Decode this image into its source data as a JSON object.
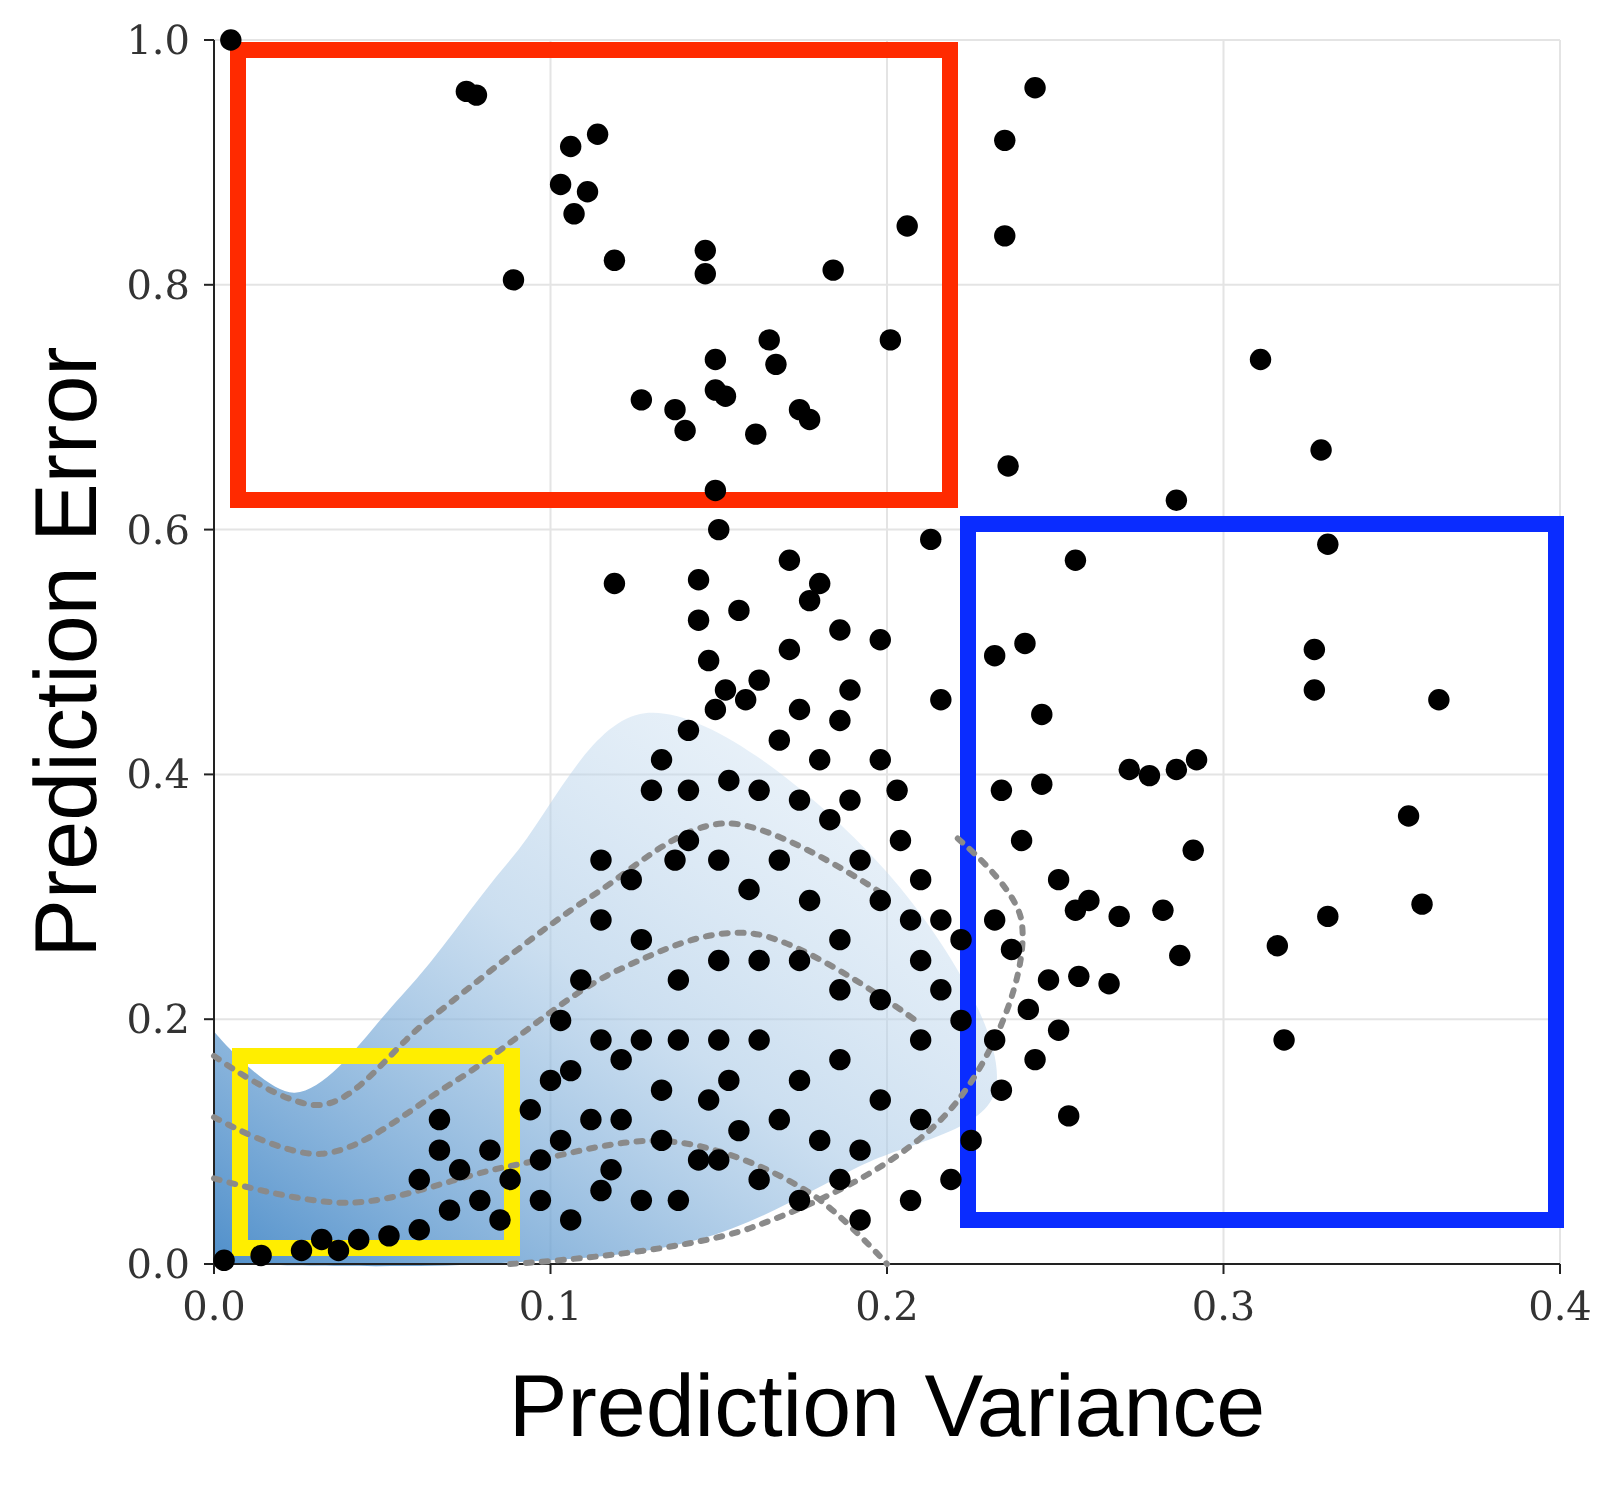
{
  "chart_data": {
    "type": "scatter",
    "xlabel": "Prediction Variance",
    "ylabel": "Prediction Error",
    "xlim": [
      0,
      0.4
    ],
    "ylim": [
      0,
      1
    ],
    "xticks": [
      {
        "value": 0,
        "label": "0.0"
      },
      {
        "value": 0.1,
        "label": "0.1"
      },
      {
        "value": 0.2,
        "label": "0.2"
      },
      {
        "value": 0.3,
        "label": "0.3"
      },
      {
        "value": 0.4,
        "label": "0.4"
      }
    ],
    "yticks": [
      {
        "value": 0,
        "label": "0.0"
      },
      {
        "value": 0.2,
        "label": "0.2"
      },
      {
        "value": 0.4,
        "label": "0.4"
      },
      {
        "value": 0.6,
        "label": "0.6"
      },
      {
        "value": 0.8,
        "label": "0.8"
      },
      {
        "value": 1,
        "label": "1.0"
      }
    ],
    "grid": true,
    "series": [
      {
        "type": "line",
        "color": "#8a8a8a",
        "line_style": "dotted",
        "x": [
          0,
          0.032,
          0.064,
          0.112,
          0.152,
          0.2
        ],
        "values": [
          0.17,
          0.13,
          0.2,
          0.3,
          0.36,
          0.3
        ]
      },
      {
        "type": "line",
        "color": "#8a8a8a",
        "line_style": "dotted",
        "x": [
          0,
          0.032,
          0.072,
          0.12,
          0.16,
          0.208
        ],
        "values": [
          0.12,
          0.09,
          0.15,
          0.24,
          0.27,
          0.2
        ]
      },
      {
        "type": "line",
        "color": "#8a8a8a",
        "line_style": "dotted",
        "x": [
          0,
          0.04,
          0.088,
          0.136,
          0.176,
          0.2
        ],
        "values": [
          0.07,
          0.05,
          0.08,
          0.1,
          0.06,
          0
        ]
      },
      {
        "type": "line",
        "color": "#8a8a8a",
        "line_style": "dotted",
        "x": [
          0.088,
          0.16,
          0.22,
          0.24,
          0.22
        ],
        "values": [
          0,
          0.03,
          0.13,
          0.28,
          0.35
        ]
      },
      {
        "color": "#000000",
        "marker": "circle",
        "x": [
          0.005,
          0.075,
          0.078,
          0.244,
          0.235,
          0.106,
          0.114,
          0.103,
          0.111,
          0.107,
          0.119,
          0.089,
          0.146,
          0.146,
          0.184,
          0.206,
          0.235,
          0.201,
          0.165,
          0.167,
          0.149,
          0.149,
          0.152,
          0.127,
          0.137,
          0.14,
          0.161,
          0.174,
          0.177,
          0.311,
          0.329,
          0.236,
          0.286,
          0.256,
          0.331,
          0.213,
          0.149,
          0.15,
          0.119,
          0.18,
          0.232,
          0.241,
          0.246,
          0.327,
          0.327,
          0.364,
          0.272,
          0.278,
          0.292,
          0.286,
          0.355,
          0.359,
          0.331,
          0.316,
          0.318,
          0.291,
          0.282,
          0.287,
          0.26,
          0.269,
          0.246,
          0.234,
          0.24,
          0.251,
          0.256,
          0.232,
          0.237,
          0.248,
          0.257,
          0.266,
          0.242,
          0.232,
          0.244,
          0.251,
          0.254,
          0.234,
          0.144,
          0.147,
          0.152,
          0.158,
          0.149,
          0.141,
          0.162,
          0.171,
          0.174,
          0.168,
          0.18,
          0.186,
          0.198,
          0.189,
          0.204,
          0.21,
          0.216,
          0.222,
          0.207,
          0.192,
          0.183,
          0.174,
          0.162,
          0.153,
          0.141,
          0.133,
          0.13,
          0.141,
          0.15,
          0.159,
          0.168,
          0.177,
          0.186,
          0.198,
          0.21,
          0.216,
          0.222,
          0.21,
          0.198,
          0.186,
          0.174,
          0.162,
          0.15,
          0.138,
          0.127,
          0.115,
          0.109,
          0.103,
          0.115,
          0.127,
          0.138,
          0.15,
          0.162,
          0.174,
          0.186,
          0.198,
          0.21,
          0.192,
          0.18,
          0.168,
          0.156,
          0.144,
          0.133,
          0.121,
          0.112,
          0.103,
          0.097,
          0.088,
          0.079,
          0.07,
          0.061,
          0.052,
          0.043,
          0.037,
          0.026,
          0.014,
          0.003,
          0.115,
          0.127,
          0.138,
          0.15,
          0.162,
          0.174,
          0.097,
          0.106,
          0.085,
          0.073,
          0.067,
          0.082,
          0.094,
          0.1,
          0.106,
          0.121,
          0.133,
          0.147,
          0.153,
          0.118,
          0.198,
          0.216,
          0.189,
          0.203,
          0.177,
          0.186,
          0.156,
          0.171,
          0.144,
          0.137,
          0.115,
          0.124,
          0.207,
          0.219,
          0.225,
          0.186,
          0.192,
          0.061,
          0.032,
          0.067
        ],
        "values": [
          1.0,
          0.958,
          0.955,
          0.961,
          0.918,
          0.913,
          0.923,
          0.882,
          0.876,
          0.858,
          0.82,
          0.804,
          0.828,
          0.809,
          0.812,
          0.848,
          0.84,
          0.755,
          0.755,
          0.735,
          0.739,
          0.714,
          0.709,
          0.706,
          0.698,
          0.681,
          0.678,
          0.698,
          0.69,
          0.739,
          0.665,
          0.652,
          0.624,
          0.575,
          0.588,
          0.592,
          0.632,
          0.6,
          0.556,
          0.556,
          0.497,
          0.507,
          0.449,
          0.502,
          0.469,
          0.461,
          0.404,
          0.399,
          0.412,
          0.404,
          0.366,
          0.294,
          0.284,
          0.26,
          0.183,
          0.338,
          0.289,
          0.252,
          0.297,
          0.284,
          0.392,
          0.387,
          0.346,
          0.314,
          0.289,
          0.281,
          0.257,
          0.232,
          0.235,
          0.229,
          0.208,
          0.183,
          0.167,
          0.191,
          0.121,
          0.142,
          0.526,
          0.493,
          0.469,
          0.461,
          0.453,
          0.436,
          0.477,
          0.502,
          0.453,
          0.428,
          0.412,
          0.444,
          0.412,
          0.379,
          0.346,
          0.314,
          0.281,
          0.265,
          0.281,
          0.33,
          0.363,
          0.379,
          0.387,
          0.395,
          0.387,
          0.412,
          0.387,
          0.346,
          0.33,
          0.306,
          0.33,
          0.297,
          0.265,
          0.297,
          0.248,
          0.224,
          0.199,
          0.183,
          0.216,
          0.224,
          0.248,
          0.248,
          0.248,
          0.232,
          0.265,
          0.281,
          0.232,
          0.199,
          0.183,
          0.183,
          0.183,
          0.183,
          0.183,
          0.15,
          0.167,
          0.134,
          0.118,
          0.093,
          0.101,
          0.118,
          0.109,
          0.085,
          0.101,
          0.118,
          0.118,
          0.101,
          0.085,
          0.069,
          0.052,
          0.044,
          0.028,
          0.023,
          0.02,
          0.011,
          0.011,
          0.007,
          0.003,
          0.06,
          0.052,
          0.052,
          0.085,
          0.069,
          0.052,
          0.052,
          0.036,
          0.036,
          0.077,
          0.093,
          0.093,
          0.126,
          0.15,
          0.158,
          0.167,
          0.142,
          0.134,
          0.15,
          0.077,
          0.51,
          0.461,
          0.469,
          0.387,
          0.542,
          0.518,
          0.534,
          0.575,
          0.559,
          0.33,
          0.33,
          0.314,
          0.052,
          0.069,
          0.101,
          0.069,
          0.036,
          0.069,
          0.02,
          0.118
        ]
      }
    ]
  }
}
